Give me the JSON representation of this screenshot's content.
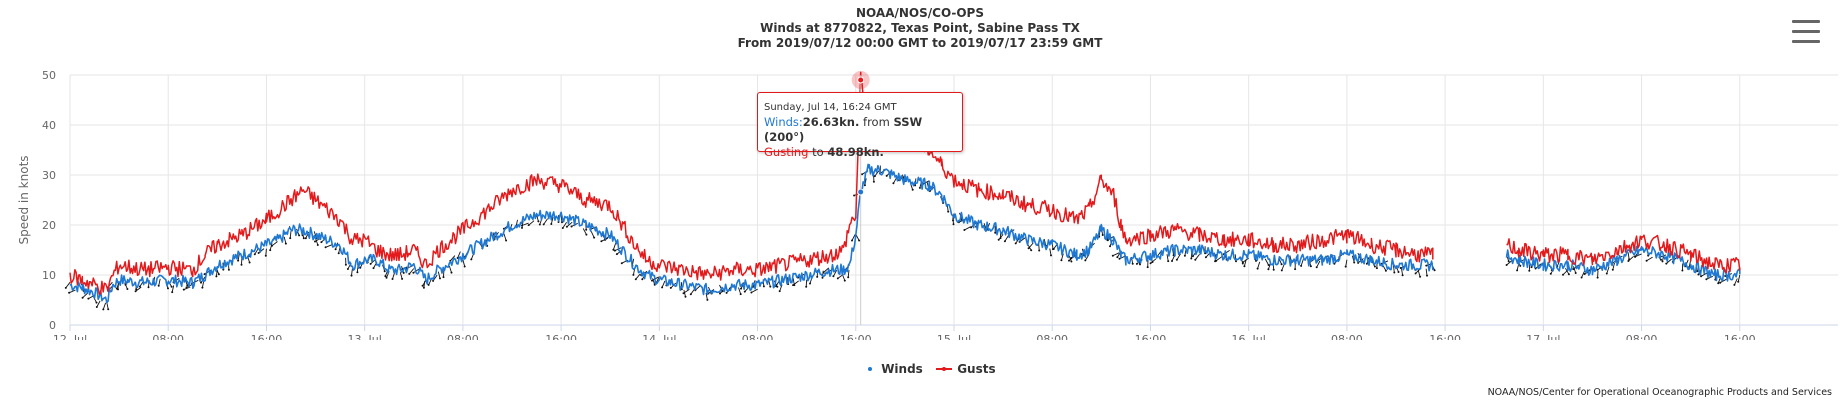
{
  "header": {
    "title_line1": "NOAA/NOS/CO-OPS",
    "title_line2": "Winds at 8770822, Texas Point, Sabine Pass TX",
    "title_line3": "From 2019/07/12 00:00 GMT to 2019/07/17 23:59 GMT"
  },
  "menu_icon": "hamburger-menu-icon",
  "credits": "NOAA/NOS/Center for Operational Oceanographic Products and Services",
  "legend": {
    "winds": "Winds",
    "gusts": "Gusts"
  },
  "colors": {
    "winds": "#1f78d1",
    "gusts": "#e31a1c",
    "arrows": "#111111",
    "grid": "#e6e6e6"
  },
  "tooltip": {
    "date": "Sunday, Jul 14, 16:24 GMT",
    "winds_label": "Winds:",
    "winds_value": "26.63kn.",
    "from_text": " from ",
    "direction": "SSW (200°)",
    "gusting_label": "Gusting",
    "to_text": " to ",
    "gust_value": "48.98kn."
  },
  "chart_data": {
    "type": "line",
    "title": "Winds at 8770822, Texas Point, Sabine Pass TX",
    "ylabel": "Speed in knots",
    "ylim": [
      0,
      50
    ],
    "yticks": [
      0,
      10,
      20,
      30,
      40,
      50
    ],
    "xlim_hours": [
      0,
      144
    ],
    "xticks": [
      {
        "h": 0,
        "label": "12. Jul"
      },
      {
        "h": 8,
        "label": "08:00"
      },
      {
        "h": 16,
        "label": "16:00"
      },
      {
        "h": 24,
        "label": "13. Jul"
      },
      {
        "h": 32,
        "label": "08:00"
      },
      {
        "h": 40,
        "label": "16:00"
      },
      {
        "h": 48,
        "label": "14. Jul"
      },
      {
        "h": 56,
        "label": "08:00"
      },
      {
        "h": 64,
        "label": "16:00"
      },
      {
        "h": 72,
        "label": "15. Jul"
      },
      {
        "h": 80,
        "label": "08:00"
      },
      {
        "h": 88,
        "label": "16:00"
      },
      {
        "h": 96,
        "label": "16. Jul"
      },
      {
        "h": 104,
        "label": "08:00"
      },
      {
        "h": 112,
        "label": "16:00"
      },
      {
        "h": 120,
        "label": "17. Jul"
      },
      {
        "h": 128,
        "label": "08:00"
      },
      {
        "h": 136,
        "label": "16:00"
      }
    ],
    "grid": true,
    "legend_position": "bottom-center",
    "series": [
      {
        "name": "Winds",
        "segments": [
          [
            [
              0,
              8
            ],
            [
              1,
              7.5
            ],
            [
              2,
              6.5
            ],
            [
              3,
              5
            ],
            [
              3.5,
              8
            ],
            [
              4,
              9
            ],
            [
              6,
              8.5
            ],
            [
              8,
              9
            ],
            [
              10,
              8.5
            ],
            [
              11,
              10
            ],
            [
              12,
              12
            ],
            [
              14,
              14
            ],
            [
              16,
              16
            ],
            [
              17,
              17
            ],
            [
              18,
              19
            ],
            [
              19,
              19
            ],
            [
              20,
              18
            ],
            [
              22,
              16
            ],
            [
              23,
              12
            ],
            [
              24,
              13
            ],
            [
              25,
              13
            ],
            [
              26,
              11
            ],
            [
              27,
              11
            ],
            [
              28,
              12
            ],
            [
              29,
              9
            ],
            [
              30,
              11
            ],
            [
              32,
              14
            ],
            [
              34,
              17
            ],
            [
              36,
              20
            ],
            [
              38,
              22
            ],
            [
              40,
              22
            ],
            [
              42,
              20
            ],
            [
              44,
              18
            ],
            [
              45,
              15
            ],
            [
              46,
              12
            ],
            [
              47,
              10
            ],
            [
              48,
              9
            ],
            [
              50,
              8
            ],
            [
              52,
              7
            ],
            [
              54,
              8
            ],
            [
              56,
              8
            ],
            [
              58,
              9
            ],
            [
              60,
              10
            ],
            [
              62,
              11
            ],
            [
              63,
              11
            ],
            [
              63.5,
              12
            ],
            [
              64,
              18
            ],
            [
              64.4,
              26.6
            ],
            [
              65,
              31
            ],
            [
              66,
              31
            ],
            [
              68,
              29
            ],
            [
              70,
              28
            ],
            [
              71,
              26
            ],
            [
              72,
              22
            ],
            [
              74,
              20
            ],
            [
              76,
              19
            ],
            [
              78,
              17
            ],
            [
              80,
              16
            ],
            [
              82,
              14
            ],
            [
              83,
              15
            ],
            [
              84,
              19
            ],
            [
              85,
              17
            ],
            [
              85.6,
              14
            ],
            [
              86,
              13
            ],
            [
              88,
              14
            ],
            [
              90,
              15
            ],
            [
              92,
              15
            ],
            [
              94,
              14
            ],
            [
              96,
              14
            ],
            [
              98,
              13
            ],
            [
              100,
              13
            ],
            [
              102,
              13
            ],
            [
              104,
              14
            ],
            [
              106,
              13
            ],
            [
              108,
              12
            ],
            [
              110,
              12
            ],
            [
              111,
              12
            ]
          ],
          [
            [
              117,
              14
            ],
            [
              118,
              13
            ],
            [
              120,
              12
            ],
            [
              122,
              12
            ],
            [
              124,
              11
            ],
            [
              126,
              13
            ],
            [
              128,
              15
            ],
            [
              130,
              14
            ],
            [
              132,
              12
            ],
            [
              134,
              10
            ],
            [
              136,
              10
            ]
          ]
        ]
      },
      {
        "name": "Gusts",
        "segments": [
          [
            [
              0,
              10
            ],
            [
              1,
              9
            ],
            [
              2,
              8
            ],
            [
              3,
              7
            ],
            [
              3.5,
              10
            ],
            [
              4,
              12
            ],
            [
              6,
              11
            ],
            [
              8,
              11.5
            ],
            [
              10,
              11
            ],
            [
              11,
              14
            ],
            [
              12,
              16
            ],
            [
              14,
              18
            ],
            [
              16,
              21
            ],
            [
              17,
              23
            ],
            [
              18,
              25
            ],
            [
              19,
              27
            ],
            [
              20,
              25
            ],
            [
              22,
              21
            ],
            [
              23,
              17
            ],
            [
              24,
              17
            ],
            [
              25,
              15
            ],
            [
              26,
              14
            ],
            [
              27,
              14
            ],
            [
              28,
              15
            ],
            [
              29,
              12
            ],
            [
              30,
              15
            ],
            [
              32,
              19
            ],
            [
              34,
              23
            ],
            [
              36,
              27
            ],
            [
              38,
              29
            ],
            [
              40,
              28
            ],
            [
              42,
              25
            ],
            [
              44,
              24
            ],
            [
              45,
              20
            ],
            [
              46,
              16
            ],
            [
              47,
              13
            ],
            [
              48,
              12
            ],
            [
              50,
              11
            ],
            [
              52,
              10
            ],
            [
              54,
              11
            ],
            [
              56,
              11
            ],
            [
              58,
              12
            ],
            [
              60,
              13
            ],
            [
              62,
              14
            ],
            [
              63,
              15
            ],
            [
              63.5,
              20
            ],
            [
              64,
              22
            ],
            [
              64.4,
              49
            ],
            [
              65,
              42
            ],
            [
              66,
              40
            ],
            [
              68,
              37
            ],
            [
              70,
              35
            ],
            [
              71,
              32
            ],
            [
              72,
              29
            ],
            [
              74,
              27
            ],
            [
              76,
              26
            ],
            [
              78,
              24
            ],
            [
              80,
              23
            ],
            [
              82,
              21
            ],
            [
              83,
              23
            ],
            [
              84,
              29
            ],
            [
              85,
              26
            ],
            [
              85.6,
              20
            ],
            [
              86,
              17
            ],
            [
              88,
              18
            ],
            [
              90,
              19
            ],
            [
              92,
              18
            ],
            [
              94,
              17
            ],
            [
              96,
              17
            ],
            [
              98,
              16
            ],
            [
              100,
              16
            ],
            [
              102,
              17
            ],
            [
              104,
              18
            ],
            [
              106,
              16
            ],
            [
              108,
              15
            ],
            [
              110,
              14
            ],
            [
              111,
              14
            ]
          ],
          [
            [
              117,
              16
            ],
            [
              118,
              15
            ],
            [
              120,
              14
            ],
            [
              122,
              14
            ],
            [
              124,
              13
            ],
            [
              126,
              15
            ],
            [
              128,
              17
            ],
            [
              130,
              16
            ],
            [
              132,
              14
            ],
            [
              134,
              12
            ],
            [
              136,
              12
            ]
          ]
        ]
      }
    ],
    "highlight_point": {
      "h": 64.4,
      "gust": 49,
      "wind": 26.6
    }
  }
}
